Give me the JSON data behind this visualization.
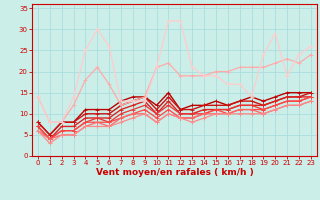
{
  "title": "",
  "xlabel": "Vent moyen/en rafales ( km/h )",
  "ylabel": "",
  "xlim": [
    -0.5,
    23.5
  ],
  "ylim": [
    0,
    36
  ],
  "xticks": [
    0,
    1,
    2,
    3,
    4,
    5,
    6,
    7,
    8,
    9,
    10,
    11,
    12,
    13,
    14,
    15,
    16,
    17,
    18,
    19,
    20,
    21,
    22,
    23
  ],
  "yticks": [
    0,
    5,
    10,
    15,
    20,
    25,
    30,
    35
  ],
  "background_color": "#cceee8",
  "grid_color": "#aadddd",
  "lines": [
    {
      "x": [
        0,
        1,
        2,
        3,
        4,
        5,
        6,
        7,
        8,
        9,
        10,
        11,
        12,
        13,
        14,
        15,
        16,
        17,
        18,
        19,
        20,
        21,
        22,
        23
      ],
      "y": [
        8,
        5,
        8,
        8,
        11,
        11,
        11,
        13,
        14,
        14,
        12,
        15,
        11,
        12,
        12,
        13,
        12,
        13,
        14,
        13,
        14,
        15,
        15,
        15
      ],
      "color": "#bb0000",
      "lw": 1.0
    },
    {
      "x": [
        0,
        1,
        2,
        3,
        4,
        5,
        6,
        7,
        8,
        9,
        10,
        11,
        12,
        13,
        14,
        15,
        16,
        17,
        18,
        19,
        20,
        21,
        22,
        23
      ],
      "y": [
        8,
        5,
        8,
        8,
        10,
        10,
        10,
        12,
        13,
        14,
        11,
        14,
        11,
        11,
        12,
        12,
        12,
        13,
        13,
        12,
        13,
        14,
        14,
        15
      ],
      "color": "#cc1111",
      "lw": 1.0
    },
    {
      "x": [
        0,
        1,
        2,
        3,
        4,
        5,
        6,
        7,
        8,
        9,
        10,
        11,
        12,
        13,
        14,
        15,
        16,
        17,
        18,
        19,
        20,
        21,
        22,
        23
      ],
      "y": [
        7,
        4,
        7,
        7,
        9,
        9,
        9,
        11,
        12,
        13,
        10,
        13,
        10,
        10,
        11,
        11,
        11,
        12,
        12,
        12,
        13,
        14,
        14,
        14
      ],
      "color": "#dd2222",
      "lw": 1.0
    },
    {
      "x": [
        0,
        1,
        2,
        3,
        4,
        5,
        6,
        7,
        8,
        9,
        10,
        11,
        12,
        13,
        14,
        15,
        16,
        17,
        18,
        19,
        20,
        21,
        22,
        23
      ],
      "y": [
        7,
        4,
        6,
        6,
        8,
        9,
        8,
        10,
        11,
        12,
        10,
        12,
        10,
        10,
        10,
        11,
        11,
        12,
        12,
        11,
        12,
        13,
        13,
        14
      ],
      "color": "#ee3333",
      "lw": 0.9
    },
    {
      "x": [
        0,
        1,
        2,
        3,
        4,
        5,
        6,
        7,
        8,
        9,
        10,
        11,
        12,
        13,
        14,
        15,
        16,
        17,
        18,
        19,
        20,
        21,
        22,
        23
      ],
      "y": [
        7,
        4,
        6,
        6,
        8,
        8,
        8,
        9,
        10,
        11,
        9,
        11,
        9,
        9,
        10,
        11,
        10,
        11,
        11,
        11,
        12,
        13,
        13,
        14
      ],
      "color": "#ff4444",
      "lw": 0.9
    },
    {
      "x": [
        0,
        1,
        2,
        3,
        4,
        5,
        6,
        7,
        8,
        9,
        10,
        11,
        12,
        13,
        14,
        15,
        16,
        17,
        18,
        19,
        20,
        21,
        22,
        23
      ],
      "y": [
        6,
        4,
        5,
        5,
        7,
        8,
        7,
        9,
        10,
        10,
        8,
        10,
        9,
        9,
        10,
        10,
        10,
        11,
        11,
        10,
        11,
        12,
        12,
        13
      ],
      "color": "#ff6666",
      "lw": 0.9
    },
    {
      "x": [
        0,
        1,
        2,
        3,
        4,
        5,
        6,
        7,
        8,
        9,
        10,
        11,
        12,
        13,
        14,
        15,
        16,
        17,
        18,
        19,
        20,
        21,
        22,
        23
      ],
      "y": [
        6,
        3,
        5,
        5,
        7,
        7,
        7,
        8,
        9,
        10,
        8,
        10,
        9,
        8,
        9,
        10,
        10,
        10,
        10,
        10,
        11,
        12,
        12,
        13
      ],
      "color": "#ff8888",
      "lw": 0.9
    },
    {
      "x": [
        0,
        1,
        2,
        3,
        4,
        5,
        6,
        7,
        8,
        9,
        10,
        11,
        12,
        13,
        14,
        15,
        16,
        17,
        18,
        19,
        20,
        21,
        22,
        23
      ],
      "y": [
        14,
        8,
        8,
        12,
        18,
        21,
        17,
        12,
        13,
        14,
        21,
        22,
        19,
        19,
        19,
        20,
        20,
        21,
        21,
        21,
        22,
        23,
        22,
        24
      ],
      "color": "#ffaaaa",
      "lw": 0.9
    },
    {
      "x": [
        0,
        1,
        2,
        3,
        4,
        5,
        6,
        7,
        8,
        9,
        10,
        11,
        12,
        13,
        14,
        15,
        16,
        17,
        18,
        19,
        20,
        21,
        22,
        23
      ],
      "y": [
        14,
        8,
        8,
        14,
        25,
        30,
        26,
        13,
        13,
        13,
        21,
        32,
        32,
        21,
        19,
        19,
        17,
        17,
        14,
        24,
        29,
        19,
        24,
        26
      ],
      "color": "#ffcccc",
      "lw": 0.9
    }
  ],
  "marker": "+",
  "marker_size": 2.5,
  "marker_ew": 0.6,
  "tick_color": "#cc0000",
  "axis_color": "#cc0000",
  "xlabel_color": "#cc0000",
  "xlabel_fontsize": 6.5,
  "tick_fontsize": 5.0
}
